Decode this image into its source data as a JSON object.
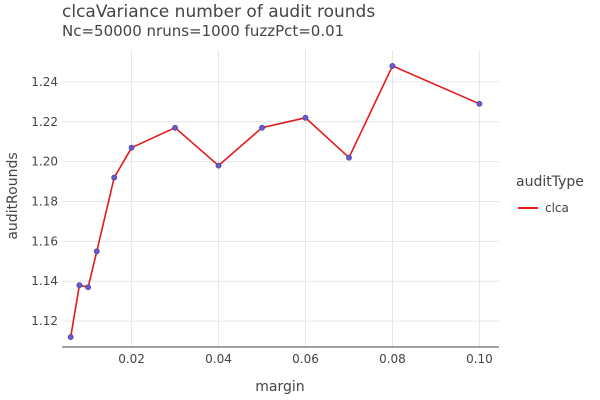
{
  "chart_data": {
    "type": "line",
    "title": "clcaVariance number of audit rounds",
    "subtitle": "Nc=50000 nruns=1000 fuzzPct=0.01",
    "xlabel": "margin",
    "ylabel": "auditRounds",
    "xlim": [
      0.004,
      0.1045
    ],
    "ylim": [
      1.107,
      1.256
    ],
    "xticks": [
      "0.02",
      "0.04",
      "0.06",
      "0.08",
      "0.10"
    ],
    "xtick_values": [
      0.02,
      0.04,
      0.06,
      0.08,
      0.1
    ],
    "yticks": [
      "1.12",
      "1.14",
      "1.16",
      "1.18",
      "1.20",
      "1.22",
      "1.24"
    ],
    "ytick_values": [
      1.12,
      1.14,
      1.16,
      1.18,
      1.2,
      1.22,
      1.24
    ],
    "grid": true,
    "legend": {
      "title": "auditType",
      "position": "right"
    },
    "series": [
      {
        "name": "clca",
        "color": "#e41a1c",
        "marker_color": "#6a5acd",
        "x": [
          0.006,
          0.008,
          0.01,
          0.012,
          0.016,
          0.02,
          0.03,
          0.04,
          0.05,
          0.06,
          0.07,
          0.08,
          0.1
        ],
        "y": [
          1.112,
          1.138,
          1.137,
          1.155,
          1.192,
          1.207,
          1.217,
          1.198,
          1.217,
          1.222,
          1.202,
          1.248,
          1.229
        ]
      }
    ]
  }
}
